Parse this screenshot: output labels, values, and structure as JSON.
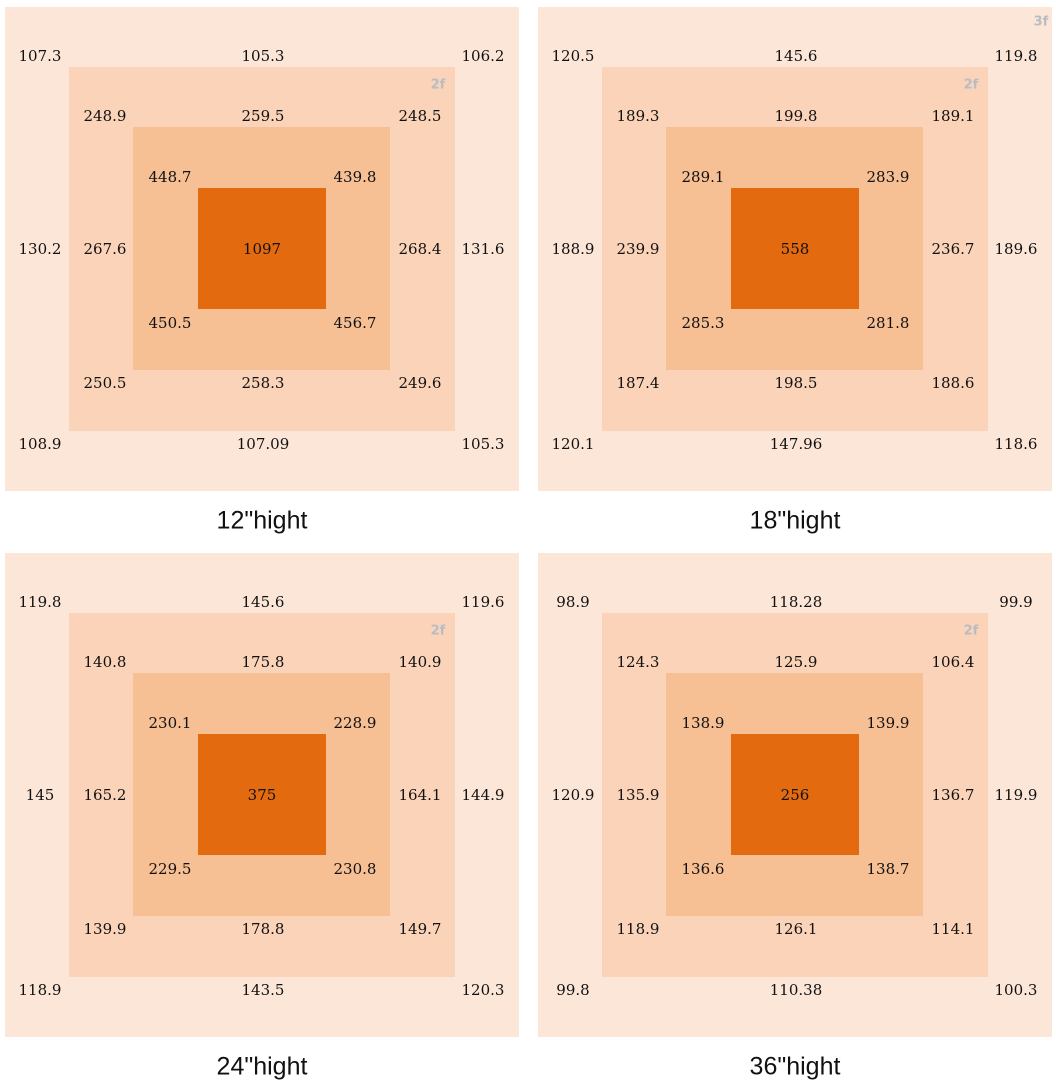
{
  "panels": [
    {
      "caption": "12\"hight",
      "zone_label": "2f",
      "outer": [
        107.3,
        105.3,
        106.2,
        130.2,
        131.6,
        108.9,
        107.09,
        105.3
      ],
      "middle": [
        248.9,
        259.5,
        248.5,
        267.6,
        268.4,
        250.5,
        258.3,
        249.6
      ],
      "inner": [
        448.7,
        439.8,
        450.5,
        456.7
      ],
      "center": 1097
    },
    {
      "caption": "18\"hight",
      "zone_label": "2f",
      "outer_label": "3f",
      "outer": [
        120.5,
        145.6,
        119.8,
        188.9,
        189.6,
        120.1,
        147.96,
        118.6
      ],
      "middle": [
        189.3,
        199.8,
        189.1,
        239.9,
        236.7,
        187.4,
        198.5,
        188.6
      ],
      "inner": [
        289.1,
        283.9,
        285.3,
        281.8
      ],
      "center": 558
    },
    {
      "caption": "24\"hight",
      "zone_label": "2f",
      "outer": [
        119.8,
        145.6,
        119.6,
        145,
        144.9,
        118.9,
        143.5,
        120.3
      ],
      "middle": [
        140.8,
        175.8,
        140.9,
        165.2,
        164.1,
        139.9,
        178.8,
        149.7
      ],
      "inner": [
        230.1,
        228.9,
        229.5,
        230.8
      ],
      "center": 375
    },
    {
      "caption": "36\"hight",
      "zone_label": "2f",
      "outer": [
        98.9,
        118.28,
        99.9,
        120.9,
        119.9,
        99.8,
        110.38,
        100.3
      ],
      "middle": [
        124.3,
        125.9,
        106.4,
        135.9,
        136.7,
        118.9,
        126.1,
        114.1
      ],
      "inner": [
        138.9,
        139.9,
        136.6,
        138.7
      ],
      "center": 256
    }
  ]
}
